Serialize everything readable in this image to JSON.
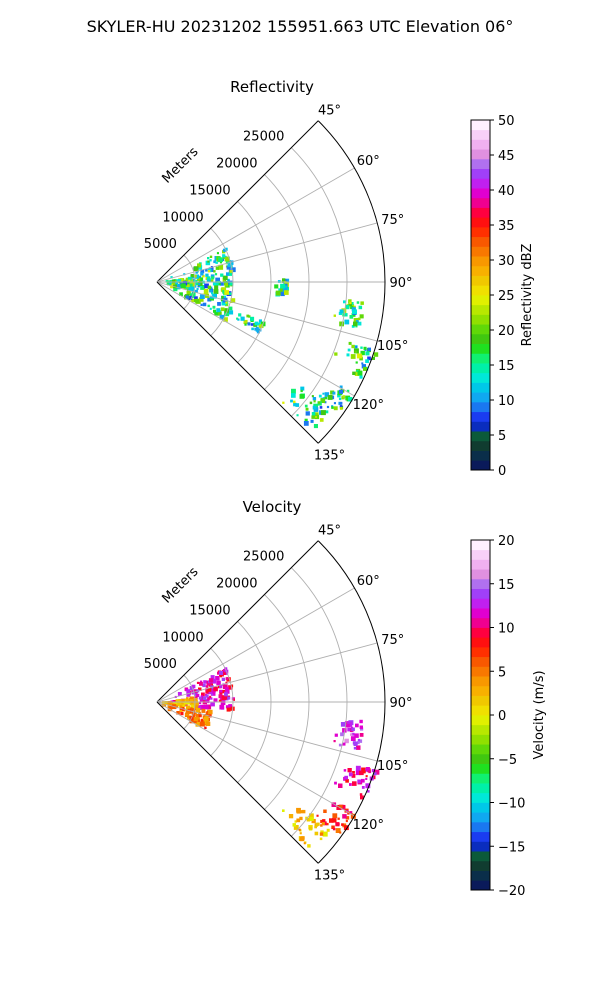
{
  "suptitle": "SKYLER-HU  20231202  155951.663 UTC Elevation 06°",
  "chart_data": [
    {
      "type": "ppi-sector",
      "title": "Reflectivity",
      "range_label": "Meters",
      "range_ticks": [
        "5000",
        "10000",
        "15000",
        "20000",
        "25000"
      ],
      "azimuth_ticks": [
        "45°",
        "60°",
        "75°",
        "90°",
        "105°",
        "120°",
        "135°"
      ],
      "azimuth_range_deg": [
        45,
        135
      ],
      "max_range_m": 30000,
      "grid": true,
      "colorbar": {
        "label": "Reflectivity dBZ",
        "min": 0,
        "max": 50,
        "ticks": [
          "0",
          "5",
          "10",
          "15",
          "20",
          "25",
          "30",
          "35",
          "40",
          "45",
          "50"
        ],
        "colors": [
          "#0a1a5a",
          "#0a2e4a",
          "#103c30",
          "#0b5a3a",
          "#0a2dbe",
          "#1a3cf0",
          "#1a78f0",
          "#10a8f0",
          "#00c8e8",
          "#00e8d8",
          "#00f0a8",
          "#10f070",
          "#20e020",
          "#40c810",
          "#60d808",
          "#90e000",
          "#b8e800",
          "#e0f000",
          "#f0e000",
          "#f0c800",
          "#f8b000",
          "#f89800",
          "#f87800",
          "#f85800",
          "#ff3000",
          "#ff1010",
          "#ff0040",
          "#f00090",
          "#e000d0",
          "#c020f0",
          "#a040f8",
          "#b070f0",
          "#e090e0",
          "#f0b0f0",
          "#f8d0f8",
          "#fff0ff"
        ]
      },
      "echoes": [
        {
          "az_range": [
            62,
            118
          ],
          "range_range": [
            1000,
            10000
          ],
          "density": 0.8
        },
        {
          "az_range": [
            80,
            100
          ],
          "range_range": [
            0,
            4500
          ],
          "density": 0.9
        },
        {
          "az_range": [
            95,
            103
          ],
          "range_range": [
            23000,
            27000
          ],
          "density": 0.45
        },
        {
          "az_range": [
            107,
            115
          ],
          "range_range": [
            25000,
            30000
          ],
          "density": 0.5
        },
        {
          "az_range": [
            119,
            126
          ],
          "range_range": [
            25000,
            29500
          ],
          "density": 0.5
        },
        {
          "az_range": [
            126,
            134
          ],
          "range_range": [
            21000,
            28000
          ],
          "density": 0.45
        },
        {
          "az_range": [
            88,
            95
          ],
          "range_range": [
            15000,
            17000
          ],
          "density": 0.25
        },
        {
          "az_range": [
            110,
            116
          ],
          "range_range": [
            10000,
            15000
          ],
          "density": 0.2
        }
      ]
    },
    {
      "type": "ppi-sector",
      "title": "Velocity",
      "range_label": "Meters",
      "range_ticks": [
        "5000",
        "10000",
        "15000",
        "20000",
        "25000"
      ],
      "azimuth_ticks": [
        "45°",
        "60°",
        "75°",
        "90°",
        "105°",
        "120°",
        "135°"
      ],
      "azimuth_range_deg": [
        45,
        135
      ],
      "max_range_m": 30000,
      "grid": true,
      "colorbar": {
        "label": "Velocity (m/s)",
        "min": -20,
        "max": 20,
        "ticks": [
          "−20",
          "−15",
          "−10",
          "−5",
          "0",
          "5",
          "10",
          "15",
          "20"
        ],
        "colors": [
          "#0a1a5a",
          "#0a2e4a",
          "#103c30",
          "#0b5a3a",
          "#0a2dbe",
          "#1a3cf0",
          "#1a78f0",
          "#10a8f0",
          "#00c8e8",
          "#00e8d8",
          "#00f0a8",
          "#10f070",
          "#20e020",
          "#40c810",
          "#60d808",
          "#90e000",
          "#b8e800",
          "#e0f000",
          "#f0e000",
          "#f0c800",
          "#f8b000",
          "#f89800",
          "#f87800",
          "#f85800",
          "#ff3000",
          "#ff1010",
          "#ff0040",
          "#f00090",
          "#e000d0",
          "#c020f0",
          "#a040f8",
          "#b070f0",
          "#e090e0",
          "#f0b0f0",
          "#f8d0f8",
          "#fff0ff"
        ]
      },
      "echoes": [
        {
          "az_range": [
            62,
            95
          ],
          "range_range": [
            1000,
            10000
          ],
          "density": 0.85,
          "value": 11
        },
        {
          "az_range": [
            80,
            98
          ],
          "range_range": [
            0,
            5000
          ],
          "density": 0.9,
          "value": 2
        },
        {
          "az_range": [
            98,
            118
          ],
          "range_range": [
            1000,
            7000
          ],
          "density": 0.8,
          "value": 5
        },
        {
          "az_range": [
            95,
            103
          ],
          "range_range": [
            23000,
            27000
          ],
          "density": 0.45,
          "value": 13
        },
        {
          "az_range": [
            107,
            115
          ],
          "range_range": [
            25000,
            30000
          ],
          "density": 0.5,
          "value": 11
        },
        {
          "az_range": [
            119,
            126
          ],
          "range_range": [
            25000,
            29500
          ],
          "density": 0.5,
          "value": 8
        },
        {
          "az_range": [
            126,
            134
          ],
          "range_range": [
            21000,
            28000
          ],
          "density": 0.45,
          "value": 2
        }
      ]
    }
  ]
}
